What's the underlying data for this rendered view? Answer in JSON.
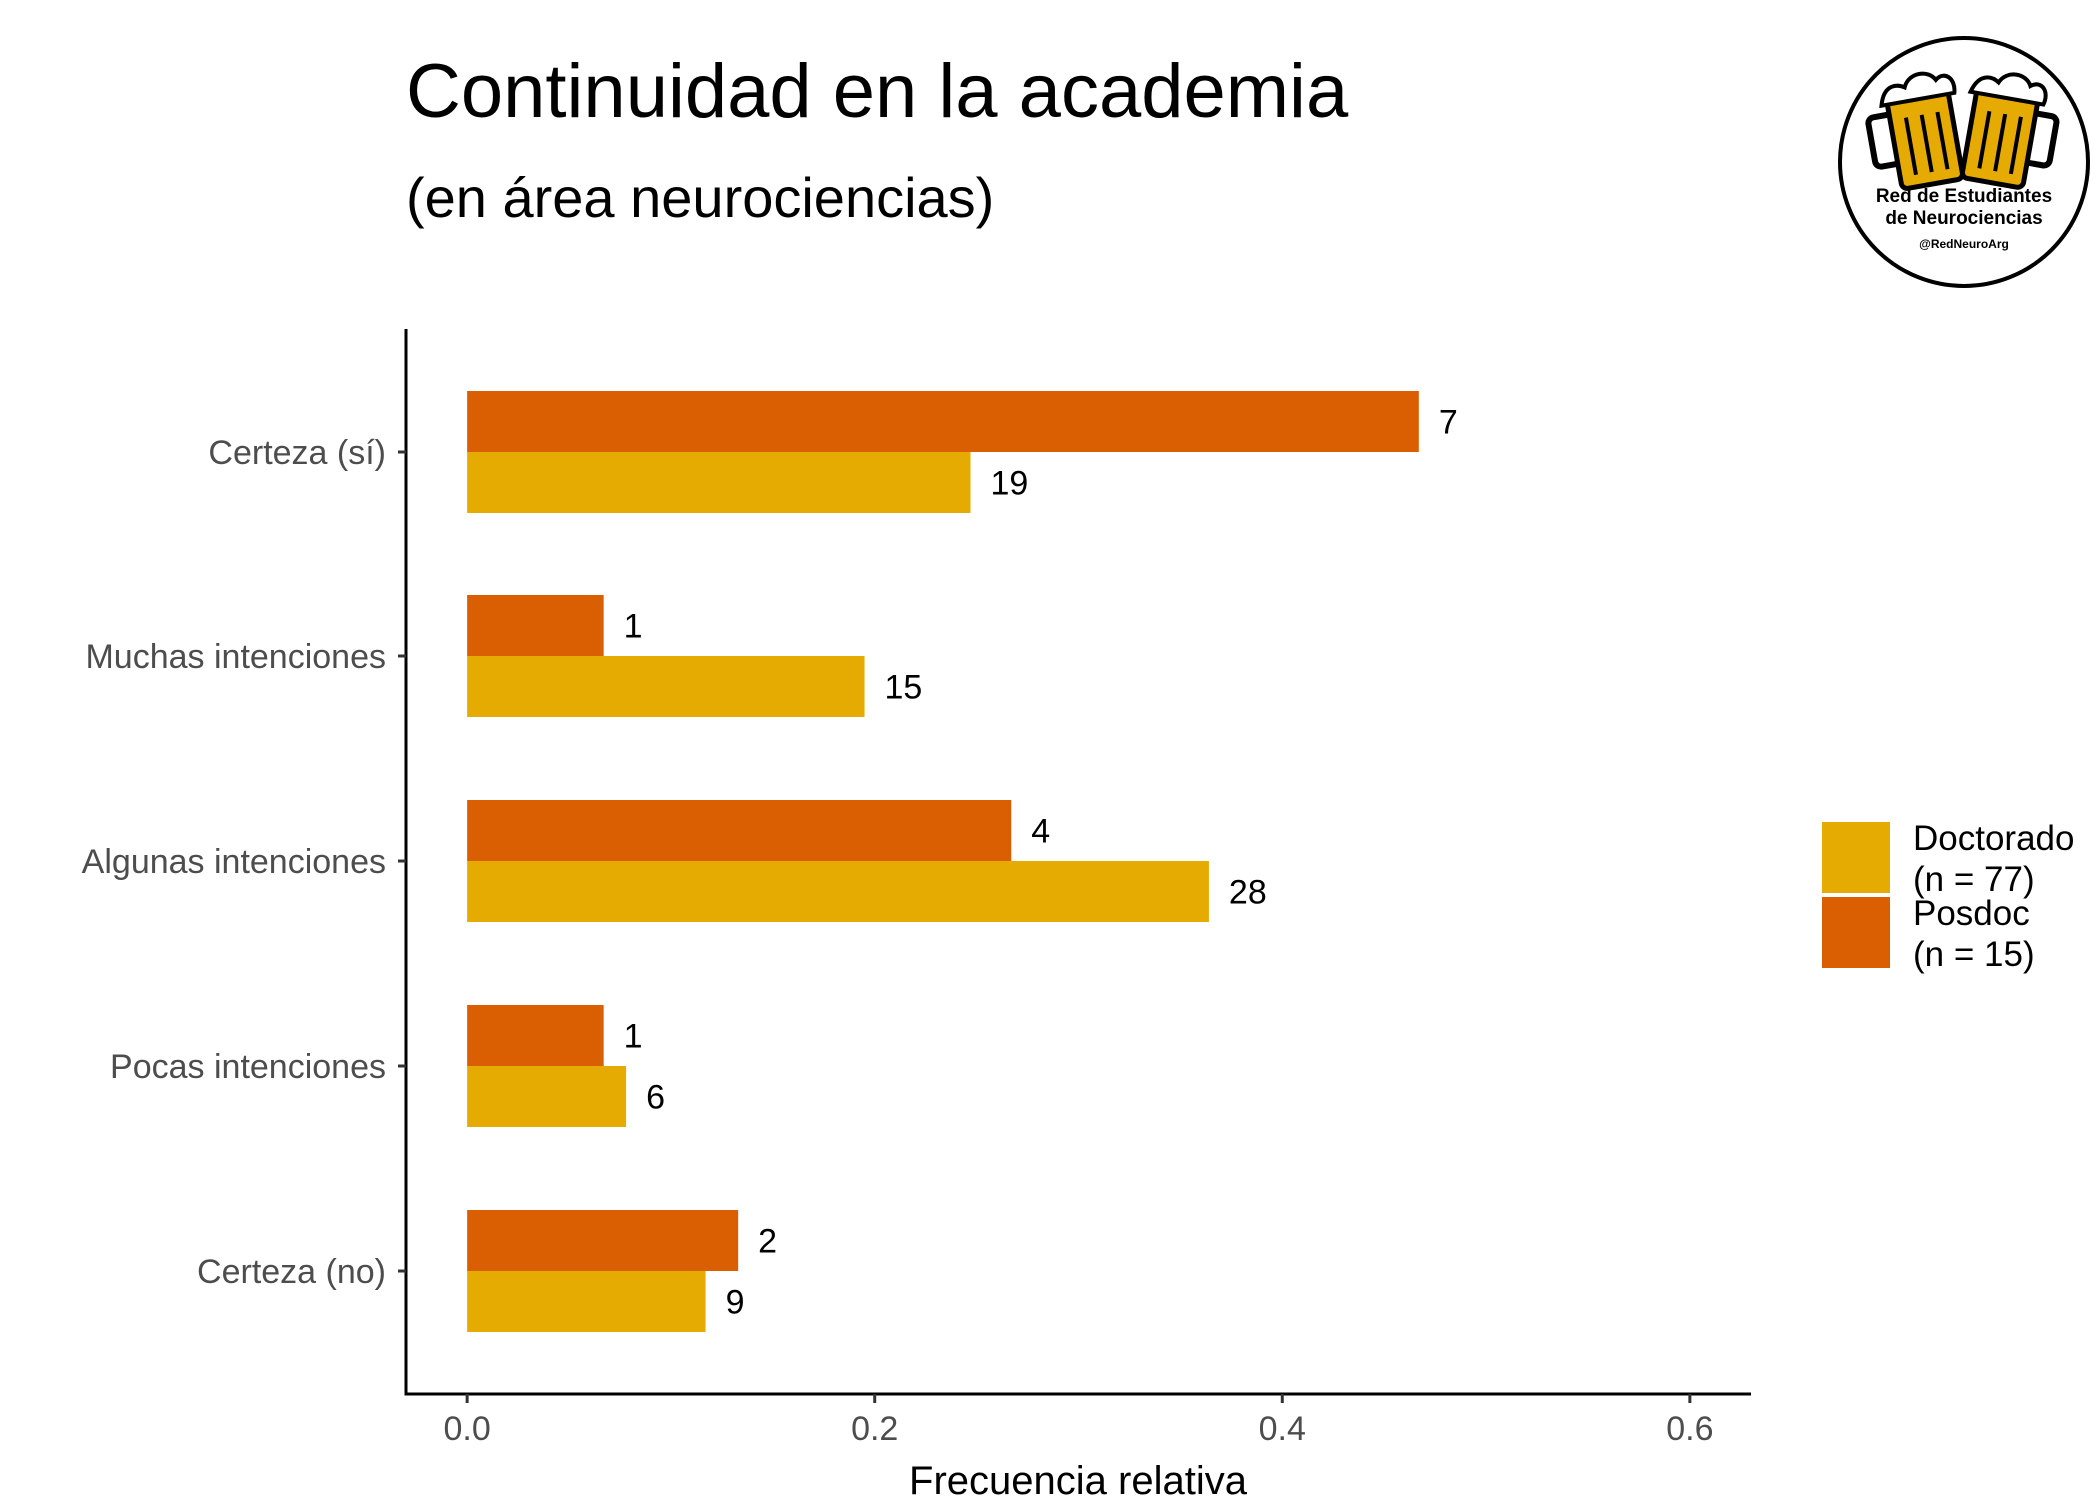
{
  "chart_data": {
    "type": "bar",
    "orientation": "horizontal",
    "title": "Continuidad en la academia",
    "subtitle": "(en área neurociencias)",
    "xlabel": "Frecuencia relativa",
    "ylabel": "",
    "xlim": [
      -0.03,
      0.63
    ],
    "x_ticks": [
      0.0,
      0.2,
      0.4,
      0.6
    ],
    "x_tick_labels": [
      "0.0",
      "0.2",
      "0.4",
      "0.6"
    ],
    "grid": false,
    "legend_position": "right",
    "categories": [
      "Certeza (sí)",
      "Muchas intenciones",
      "Algunas intenciones",
      "Pocas intenciones",
      "Certeza (no)"
    ],
    "series": [
      {
        "name": "Posdoc\n(n = 15)",
        "legend_lines": [
          "Posdoc",
          "(n = 15)"
        ],
        "color": "#D95F02",
        "values": [
          0.467,
          0.067,
          0.267,
          0.067,
          0.133
        ],
        "labels": [
          "7",
          "1",
          "4",
          "1",
          "2"
        ]
      },
      {
        "name": "Doctorado\n(n = 77)",
        "legend_lines": [
          "Doctorado",
          "(n = 77)"
        ],
        "color": "#E6AB02",
        "values": [
          0.247,
          0.195,
          0.364,
          0.078,
          0.117
        ],
        "labels": [
          "19",
          "15",
          "28",
          "6",
          "9"
        ]
      }
    ],
    "legend_order": [
      1,
      0
    ]
  },
  "logo": {
    "line1": "Red de Estudiantes",
    "line2": "de Neurociencias",
    "handle": "@RedNeuroArg",
    "ring_color": "#000000",
    "mug_color": "#E6AB02"
  }
}
